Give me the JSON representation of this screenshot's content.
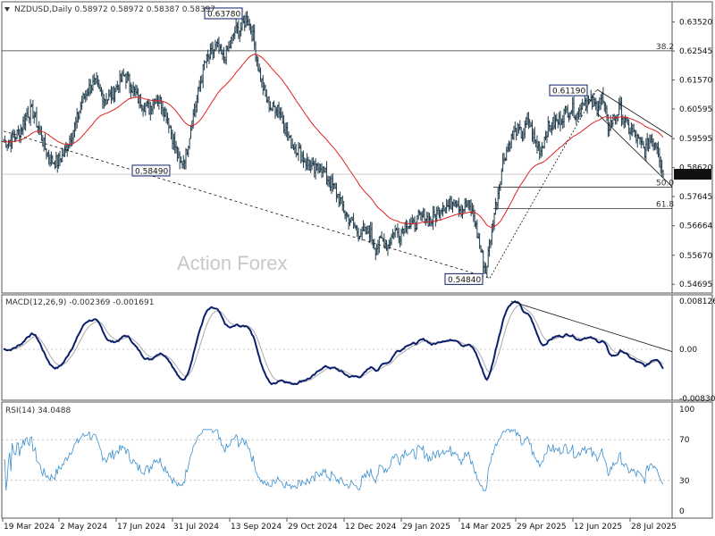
{
  "chart_data": [
    {
      "type": "candlestick",
      "header": "NZDUSD,Daily  0.58972 0.58972 0.58387 0.58397",
      "symbol": "NZDUSD",
      "timeframe": "Daily",
      "ohlc_last": {
        "open": 0.58972,
        "high": 0.58972,
        "low": 0.58387,
        "close": 0.58397
      },
      "price_ticks": [
        "0.63520",
        "0.62545",
        "0.61570",
        "0.60595",
        "0.59595",
        "0.58620",
        "0.57645",
        "0.56664",
        "0.55670",
        "0.54695"
      ],
      "ylim": [
        0.544,
        0.642
      ],
      "date_ticks": [
        "19 Mar 2024",
        "2 May 2024",
        "17 Jun 2024",
        "31 Jul 2024",
        "13 Sep 2024",
        "29 Oct 2024",
        "12 Dec 2024",
        "29 Jan 2025",
        "14 Mar 2025",
        "29 Apr 2025",
        "12 Jun 2025",
        "28 Jul 2025"
      ],
      "current_price": "0.58397",
      "watermark": "Action Forex",
      "callouts": [
        "0.63780",
        "0.58490",
        "0.61190",
        "0.54840"
      ],
      "fib_levels": [
        {
          "label": "38.2",
          "price": 0.6255
        },
        {
          "label": "50.0",
          "price": 0.5796
        },
        {
          "label": "61.8",
          "price": 0.5724
        }
      ],
      "series": [
        {
          "kind": "price",
          "color": "#1e3a4a"
        },
        {
          "kind": "moving-average",
          "color": "#e02020"
        }
      ],
      "closes_weekly": [
        0.595,
        0.5965,
        0.599,
        0.6045,
        0.605,
        0.599,
        0.5925,
        0.5885,
        0.588,
        0.5905,
        0.596,
        0.601,
        0.6085,
        0.6125,
        0.6145,
        0.6115,
        0.609,
        0.611,
        0.6145,
        0.6175,
        0.614,
        0.61,
        0.6075,
        0.606,
        0.61,
        0.608,
        0.603,
        0.595,
        0.587,
        0.5905,
        0.602,
        0.611,
        0.621,
        0.624,
        0.627,
        0.623,
        0.626,
        0.632,
        0.633,
        0.637,
        0.63,
        0.618,
        0.61,
        0.606,
        0.607,
        0.601,
        0.595,
        0.593,
        0.59,
        0.587,
        0.585,
        0.587,
        0.583,
        0.58,
        0.576,
        0.571,
        0.568,
        0.565,
        0.564,
        0.565,
        0.559,
        0.562,
        0.56,
        0.565,
        0.564,
        0.568,
        0.566,
        0.569,
        0.57,
        0.568,
        0.571,
        0.574,
        0.573,
        0.576,
        0.572,
        0.574,
        0.57,
        0.56,
        0.551,
        0.566,
        0.578,
        0.59,
        0.595,
        0.599,
        0.597,
        0.602,
        0.595,
        0.592,
        0.599,
        0.601,
        0.602,
        0.605,
        0.606,
        0.604,
        0.609,
        0.608,
        0.607,
        0.61,
        0.6,
        0.603,
        0.606,
        0.6,
        0.598,
        0.595,
        0.592,
        0.596,
        0.594,
        0.584
      ]
    },
    {
      "type": "line",
      "header": "MACD(12,26,9) -0.002369 -0.001691",
      "ticks": [
        "0.008126",
        "0.00",
        "-0.008301"
      ],
      "ylim": [
        -0.0086,
        0.0092
      ],
      "series": [
        {
          "kind": "macd",
          "color": "#0b1f6b"
        },
        {
          "kind": "signal",
          "color": "#aaaaaa"
        }
      ]
    },
    {
      "type": "line",
      "header": "RSI(14) 34.0488",
      "ticks": [
        "100",
        "70",
        "30",
        "0"
      ],
      "levels": [
        70,
        30
      ],
      "ylim": [
        0,
        100
      ],
      "series": [
        {
          "kind": "rsi",
          "color": "#3a8fd0"
        }
      ]
    }
  ]
}
